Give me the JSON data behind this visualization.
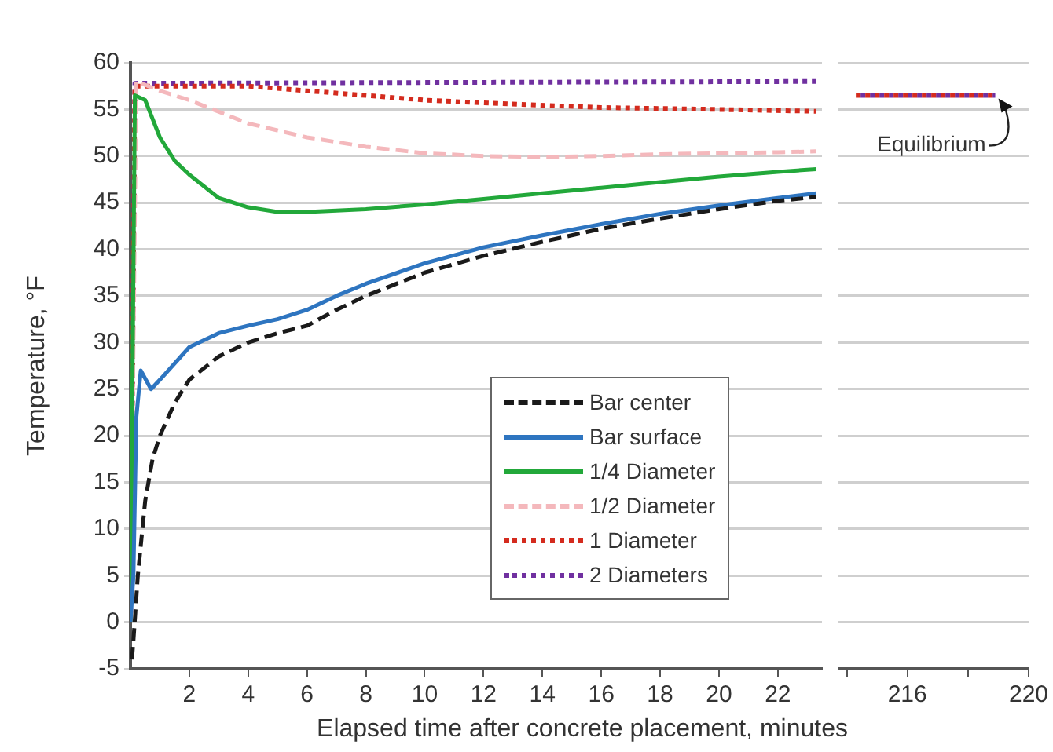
{
  "chart_data": [
    {
      "type": "line",
      "ylabel": "Temperature, °F",
      "xlabel": "Elapsed time after concrete placement, minutes",
      "xlim": [
        0,
        23.5
      ],
      "xticks": [
        2,
        4,
        6,
        8,
        10,
        12,
        14,
        16,
        18,
        20,
        22
      ],
      "ylim": [
        -5,
        60
      ],
      "yticks": [
        -5,
        0,
        5,
        10,
        15,
        20,
        25,
        30,
        35,
        40,
        45,
        50,
        55,
        60
      ],
      "grid": "y",
      "legend": "bottom right",
      "series": [
        {
          "name": "Bar center",
          "color": "#1a1a1a",
          "line_style": "dashed",
          "x": [
            0.05,
            0.1,
            0.25,
            0.5,
            0.75,
            1,
            1.5,
            2,
            3,
            4,
            5,
            6,
            7,
            8,
            10,
            12,
            14,
            16,
            18,
            20,
            22,
            23.3
          ],
          "values": [
            -4,
            -2,
            5,
            13,
            17.5,
            20,
            23.5,
            26,
            28.5,
            30,
            31,
            31.8,
            33.5,
            35,
            37.5,
            39.3,
            40.8,
            42.2,
            43.3,
            44.3,
            45.2,
            45.6
          ]
        },
        {
          "name": "Bar surface",
          "color": "#2e75c0",
          "line_style": "solid",
          "x": [
            0,
            0.1,
            0.2,
            0.35,
            0.7,
            1,
            2,
            3,
            4,
            5,
            6,
            7,
            8,
            10,
            12,
            14,
            16,
            18,
            20,
            22,
            23.3
          ],
          "values": [
            0,
            5,
            22,
            27,
            25,
            26,
            29.5,
            31,
            31.8,
            32.5,
            33.5,
            35,
            36.3,
            38.5,
            40.2,
            41.5,
            42.7,
            43.8,
            44.7,
            45.5,
            46
          ]
        },
        {
          "name": "1/4 Diameter",
          "color": "#22a83a",
          "line_style": "solid",
          "x": [
            0,
            0.15,
            0.5,
            1,
            1.5,
            2,
            3,
            4,
            5,
            6,
            8,
            10,
            12,
            14,
            16,
            18,
            20,
            22,
            23.3
          ],
          "values": [
            0,
            56.5,
            56,
            52,
            49.5,
            48,
            45.5,
            44.5,
            44,
            44,
            44.3,
            44.8,
            45.4,
            46,
            46.6,
            47.2,
            47.8,
            48.3,
            48.6
          ]
        },
        {
          "name": "1/2 Diameter",
          "color": "#f4b8bc",
          "line_style": "dashed",
          "x": [
            0,
            0.2,
            1,
            2,
            4,
            6,
            8,
            10,
            12,
            14,
            16,
            18,
            20,
            22,
            23.3
          ],
          "values": [
            0,
            58,
            57,
            56,
            53.5,
            52,
            51,
            50.3,
            50,
            49.9,
            50,
            50.2,
            50.3,
            50.4,
            50.5
          ]
        },
        {
          "name": "1 Diameter",
          "color": "#d42b1e",
          "line_style": "dotted",
          "x": [
            0,
            0.15,
            4,
            6,
            8,
            10,
            12,
            16,
            20,
            23.3
          ],
          "values": [
            0,
            57.5,
            57.5,
            57,
            56.5,
            56,
            55.7,
            55.2,
            55,
            54.8
          ]
        },
        {
          "name": "2 Diameters",
          "color": "#7030a0",
          "line_style": "dotted",
          "x": [
            0,
            0.15,
            23.3
          ],
          "values": [
            -0.5,
            57.8,
            58
          ]
        }
      ]
    },
    {
      "type": "line",
      "xlim": [
        213.7,
        220
      ],
      "xticks": [
        {
          "value": 214,
          "label": null
        },
        216,
        {
          "value": 218,
          "label": null
        },
        220
      ],
      "ylim": [
        -5,
        60
      ],
      "yticks": [
        -5,
        0,
        5,
        10,
        15,
        20,
        25,
        30,
        35,
        40,
        45,
        50,
        55,
        60
      ],
      "grid": "y",
      "tick_labels": "x",
      "annotations": [
        {
          "text": "Equilibrium",
          "x": 218.9,
          "y": 56.5
        }
      ],
      "series": [
        {
          "color": "#d42b1e",
          "line_style": "dotted",
          "x": [
            214.3,
            218.9
          ],
          "values": [
            56.5,
            56.5
          ]
        },
        {
          "color": "#7030a0",
          "line_style": "dotted",
          "x": [
            214.3,
            218.9
          ],
          "values": [
            56.5,
            56.5
          ]
        }
      ]
    }
  ]
}
